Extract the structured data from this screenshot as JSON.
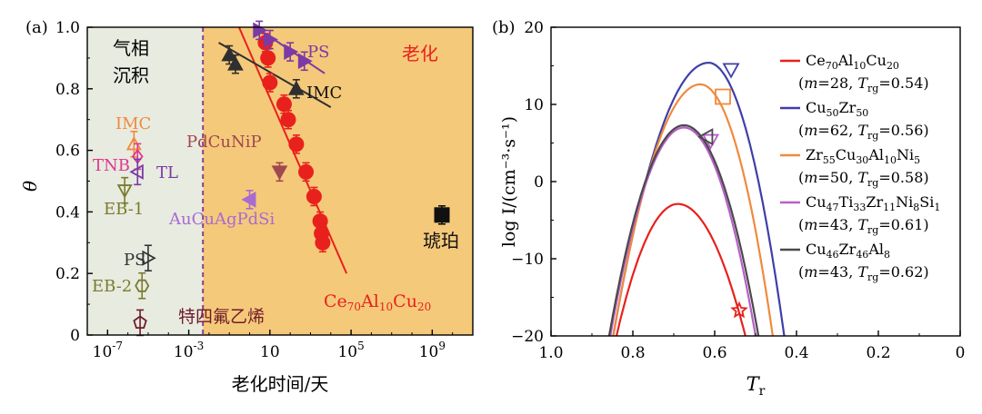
{
  "chart_data": [
    {
      "panel": "(a)",
      "type": "scatter",
      "xscale": "log",
      "xlabel": "老化时间/天",
      "ylabel": "θ",
      "xlim": [
        1e-08,
        100000000000.0
      ],
      "ylim": [
        0,
        1.0
      ],
      "x_ticks": [
        {
          "v": 1e-07,
          "base": "10",
          "exp": "-7"
        },
        {
          "v": 0.001,
          "base": "10",
          "exp": "-3"
        },
        {
          "v": 10,
          "label": "10"
        },
        {
          "v": 100000.0,
          "base": "10",
          "exp": "5"
        },
        {
          "v": 1000000000.0,
          "base": "10",
          "exp": "9"
        }
      ],
      "y_ticks": [
        "0",
        "0.2",
        "0.4",
        "0.6",
        "0.8",
        "1.0"
      ],
      "region_labels": {
        "vapor_line1": "气相",
        "vapor_line2": "沉积",
        "aging": "老化"
      },
      "colors": {
        "vapor_bg": "#e8ebe0",
        "aging_bg": "#f5c97a",
        "divider": "#8e3f8c"
      },
      "divider_x": 0.005,
      "series": [
        {
          "name": "Ce70Al10Cu20",
          "color": "#e8211d",
          "marker": "circle",
          "filled": true,
          "points": [
            [
              6,
              0.95
            ],
            [
              8,
              0.9
            ],
            [
              10,
              0.82
            ],
            [
              50,
              0.75
            ],
            [
              80,
              0.7
            ],
            [
              200,
              0.62
            ],
            [
              600,
              0.53
            ],
            [
              1500,
              0.45
            ],
            [
              3000,
              0.37
            ],
            [
              3500,
              0.33
            ],
            [
              4000,
              0.3
            ]
          ],
          "fit": [
            [
              0.3,
              1.0
            ],
            [
              60000,
              0.2
            ]
          ]
        },
        {
          "name": "IMC",
          "color": "#2f2f2f",
          "marker": "triangle-up",
          "filled": true,
          "points": [
            [
              0.1,
              0.91
            ],
            [
              0.2,
              0.88
            ],
            [
              200,
              0.8
            ]
          ],
          "fit": [
            [
              0.03,
              0.95
            ],
            [
              10000,
              0.74
            ]
          ]
        },
        {
          "name": "PS",
          "color": "#7b3aa6",
          "marker": "triangle-right",
          "filled": true,
          "points": [
            [
              3,
              0.99
            ],
            [
              10,
              0.96
            ],
            [
              100,
              0.92
            ],
            [
              500,
              0.89
            ]
          ],
          "fit": [
            [
              2,
              1.0
            ],
            [
              5000,
              0.85
            ]
          ]
        },
        {
          "name": "PdCuNiP",
          "color": "#a0484f",
          "marker": "triangle-down",
          "filled": true,
          "points": [
            [
              30,
              0.53
            ]
          ]
        },
        {
          "name": "AuCuAgPdSi",
          "color": "#a86bd1",
          "marker": "triangle-left",
          "filled": true,
          "points": [
            [
              1,
              0.44
            ]
          ]
        },
        {
          "name": "琥珀",
          "color": "#111111",
          "marker": "square",
          "filled": true,
          "points": [
            [
              3000000000.0,
              0.39
            ]
          ]
        },
        {
          "name": "IMC",
          "label_color": "#f08a3c",
          "color": "#f08a3c",
          "marker": "triangle-up",
          "filled": false,
          "points": [
            [
              2e-06,
              0.62
            ]
          ]
        },
        {
          "name": "TNB",
          "label_color": "#e0378f",
          "color": "#e0378f",
          "marker": "diamond",
          "filled": false,
          "points": [
            [
              3e-06,
              0.58
            ]
          ]
        },
        {
          "name": "TL",
          "label_color": "#7b3aa6",
          "color": "#7b3aa6",
          "marker": "triangle-left",
          "filled": false,
          "points": [
            [
              3e-06,
              0.53
            ]
          ]
        },
        {
          "name": "EB-1",
          "label_color": "#7b7b2e",
          "color": "#7b7b2e",
          "marker": "triangle-down",
          "filled": false,
          "points": [
            [
              7e-07,
              0.47
            ]
          ]
        },
        {
          "name": "PS",
          "label_color": "#333333",
          "color": "#333333",
          "marker": "triangle-right",
          "filled": false,
          "points": [
            [
              1e-05,
              0.25
            ]
          ]
        },
        {
          "name": "EB-2",
          "label_color": "#7b7b2e",
          "color": "#7b7b2e",
          "marker": "hexagon",
          "filled": false,
          "points": [
            [
              5e-06,
              0.16
            ]
          ]
        },
        {
          "name": "特四氟乙烯",
          "label_color": "#6e1b2a",
          "color": "#6e1b2a",
          "marker": "pentagon",
          "filled": false,
          "points": [
            [
              4e-06,
              0.04
            ]
          ]
        }
      ]
    },
    {
      "panel": "(b)",
      "type": "line",
      "xlabel": "T",
      "xlabel_sub": "r",
      "ylabel": "log I/(cm⁻³·s⁻¹)",
      "xlim": [
        1.0,
        0.0
      ],
      "ylim": [
        -20,
        20
      ],
      "x_ticks": [
        "1.0",
        "0.8",
        "0.6",
        "0.4",
        "0.2",
        "0"
      ],
      "y_ticks": [
        "-20",
        "-10",
        "0",
        "10",
        "20"
      ],
      "series": [
        {
          "name": "Ce70Al10Cu20",
          "color": "#e8211d",
          "m": "28",
          "trg": "0.54",
          "legend_formula": [
            [
              "Ce",
              ""
            ],
            [
              "70",
              "sub"
            ],
            [
              "Al",
              ""
            ],
            [
              "10",
              "sub"
            ],
            [
              "Cu",
              ""
            ],
            [
              "20",
              "sub"
            ]
          ],
          "curve": {
            "peak_x": 0.69,
            "peak_y": -2.9,
            "left_x": 0.84,
            "right_x": 0.525
          },
          "marker": {
            "shape": "star",
            "x": 0.54,
            "y": -16.7
          }
        },
        {
          "name": "Cu50Zr50",
          "color": "#3f3fa8",
          "m": "62",
          "trg": "0.56",
          "legend_formula": [
            [
              "Cu",
              ""
            ],
            [
              "50",
              "sub"
            ],
            [
              "Zr",
              ""
            ],
            [
              "50",
              "sub"
            ]
          ],
          "curve": {
            "peak_x": 0.615,
            "peak_y": 15.4,
            "left_x": 0.848,
            "right_x": 0.43
          },
          "marker": {
            "shape": "triangle-down",
            "x": 0.56,
            "y": 14.5
          }
        },
        {
          "name": "Zr55Cu30Al10Ni5",
          "color": "#f08a3c",
          "m": "50",
          "trg": "0.58",
          "legend_formula": [
            [
              "Zr",
              ""
            ],
            [
              "55",
              "sub"
            ],
            [
              "Cu",
              ""
            ],
            [
              "30",
              "sub"
            ],
            [
              "Al",
              ""
            ],
            [
              "10",
              "sub"
            ],
            [
              "Ni",
              ""
            ],
            [
              "5",
              "sub"
            ]
          ],
          "curve": {
            "peak_x": 0.635,
            "peak_y": 12.6,
            "left_x": 0.848,
            "right_x": 0.458
          },
          "marker": {
            "shape": "square",
            "x": 0.58,
            "y": 11.0
          }
        },
        {
          "name": "Cu47Ti33Zr11Ni8Si1",
          "color": "#b85fc9",
          "m": "43",
          "trg": "0.61",
          "legend_formula": [
            [
              "Cu",
              ""
            ],
            [
              "47",
              "sub"
            ],
            [
              "Ti",
              ""
            ],
            [
              "33",
              "sub"
            ],
            [
              "Zr",
              ""
            ],
            [
              "11",
              "sub"
            ],
            [
              "Ni",
              ""
            ],
            [
              "8",
              "sub"
            ],
            [
              "Si",
              ""
            ],
            [
              "1",
              "sub"
            ]
          ],
          "curve": {
            "peak_x": 0.675,
            "peak_y": 7.0,
            "left_x": 0.855,
            "right_x": 0.5
          },
          "marker": {
            "shape": "triangle-down",
            "x": 0.61,
            "y": 5.3
          }
        },
        {
          "name": "Cu46Zr46Al8",
          "color": "#4a4a4a",
          "m": "43",
          "trg": "0.62",
          "legend_formula": [
            [
              "Cu",
              ""
            ],
            [
              "46",
              "sub"
            ],
            [
              "Zr",
              ""
            ],
            [
              "46",
              "sub"
            ],
            [
              "Al",
              ""
            ],
            [
              "8",
              "sub"
            ]
          ],
          "curve": {
            "peak_x": 0.675,
            "peak_y": 7.3,
            "left_x": 0.858,
            "right_x": 0.493
          },
          "marker": {
            "shape": "triangle-left",
            "x": 0.62,
            "y": 5.8
          }
        }
      ]
    }
  ]
}
